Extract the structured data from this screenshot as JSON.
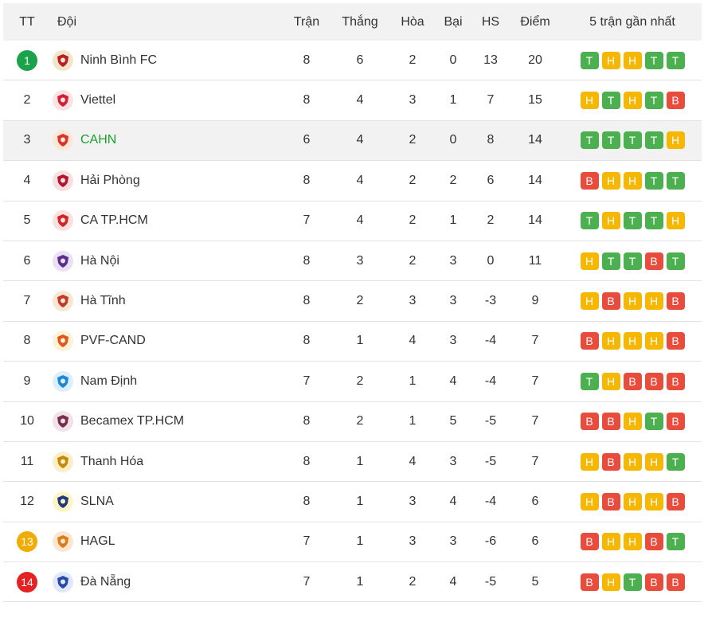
{
  "header": {
    "rank": "TT",
    "team": "Đội",
    "played": "Trận",
    "won": "Thắng",
    "draw": "Hòa",
    "lost": "Bại",
    "gd": "HS",
    "points": "Điểm",
    "form": "5 trận gần nhất"
  },
  "colors": {
    "win": "#4caf50",
    "draw": "#f5b700",
    "loss": "#e74c3c",
    "rank_top": "#1aa34a",
    "rank_playoff": "#f0ad00",
    "rank_relegation": "#e52222",
    "highlight_row": "#f2f2f2",
    "highlight_text": "#1e9e2f"
  },
  "rows": [
    {
      "rank": "1",
      "badge": "top",
      "team": "Ninh Bình FC",
      "logo_icon": "ninh-binh-logo-icon",
      "played": "8",
      "won": "6",
      "draw": "2",
      "lost": "0",
      "gd": "13",
      "points": "20",
      "form": [
        "T",
        "H",
        "H",
        "T",
        "T"
      ]
    },
    {
      "rank": "2",
      "badge": "",
      "team": "Viettel",
      "logo_icon": "viettel-logo-icon",
      "played": "8",
      "won": "4",
      "draw": "3",
      "lost": "1",
      "gd": "7",
      "points": "15",
      "form": [
        "H",
        "T",
        "H",
        "T",
        "B"
      ]
    },
    {
      "rank": "3",
      "badge": "",
      "team": "CAHN",
      "logo_icon": "cahn-logo-icon",
      "highlight": true,
      "played": "6",
      "won": "4",
      "draw": "2",
      "lost": "0",
      "gd": "8",
      "points": "14",
      "form": [
        "T",
        "T",
        "T",
        "T",
        "H"
      ]
    },
    {
      "rank": "4",
      "badge": "",
      "team": "Hải Phòng",
      "logo_icon": "hai-phong-logo-icon",
      "played": "8",
      "won": "4",
      "draw": "2",
      "lost": "2",
      "gd": "6",
      "points": "14",
      "form": [
        "B",
        "H",
        "H",
        "T",
        "T"
      ]
    },
    {
      "rank": "5",
      "badge": "",
      "team": "CA TP.HCM",
      "logo_icon": "ca-tphcm-logo-icon",
      "played": "7",
      "won": "4",
      "draw": "2",
      "lost": "1",
      "gd": "2",
      "points": "14",
      "form": [
        "T",
        "H",
        "T",
        "T",
        "H"
      ]
    },
    {
      "rank": "6",
      "badge": "",
      "team": "Hà Nội",
      "logo_icon": "ha-noi-logo-icon",
      "played": "8",
      "won": "3",
      "draw": "2",
      "lost": "3",
      "gd": "0",
      "points": "11",
      "form": [
        "H",
        "T",
        "T",
        "B",
        "T"
      ]
    },
    {
      "rank": "7",
      "badge": "",
      "team": "Hà Tĩnh",
      "logo_icon": "ha-tinh-logo-icon",
      "played": "8",
      "won": "2",
      "draw": "3",
      "lost": "3",
      "gd": "-3",
      "points": "9",
      "form": [
        "H",
        "B",
        "H",
        "H",
        "B"
      ]
    },
    {
      "rank": "8",
      "badge": "",
      "team": "PVF-CAND",
      "logo_icon": "pvf-cand-logo-icon",
      "played": "8",
      "won": "1",
      "draw": "4",
      "lost": "3",
      "gd": "-4",
      "points": "7",
      "form": [
        "B",
        "H",
        "H",
        "H",
        "B"
      ]
    },
    {
      "rank": "9",
      "badge": "",
      "team": "Nam Định",
      "logo_icon": "nam-dinh-logo-icon",
      "played": "7",
      "won": "2",
      "draw": "1",
      "lost": "4",
      "gd": "-4",
      "points": "7",
      "form": [
        "T",
        "H",
        "B",
        "B",
        "B"
      ]
    },
    {
      "rank": "10",
      "badge": "",
      "team": "Becamex TP.HCM",
      "logo_icon": "becamex-logo-icon",
      "played": "8",
      "won": "2",
      "draw": "1",
      "lost": "5",
      "gd": "-5",
      "points": "7",
      "form": [
        "B",
        "B",
        "H",
        "T",
        "B"
      ]
    },
    {
      "rank": "11",
      "badge": "",
      "team": "Thanh Hóa",
      "logo_icon": "thanh-hoa-logo-icon",
      "played": "8",
      "won": "1",
      "draw": "4",
      "lost": "3",
      "gd": "-5",
      "points": "7",
      "form": [
        "H",
        "B",
        "H",
        "H",
        "T"
      ]
    },
    {
      "rank": "12",
      "badge": "",
      "team": "SLNA",
      "logo_icon": "slna-logo-icon",
      "played": "8",
      "won": "1",
      "draw": "3",
      "lost": "4",
      "gd": "-4",
      "points": "6",
      "form": [
        "H",
        "B",
        "H",
        "H",
        "B"
      ]
    },
    {
      "rank": "13",
      "badge": "playoff",
      "team": "HAGL",
      "logo_icon": "hagl-logo-icon",
      "played": "7",
      "won": "1",
      "draw": "3",
      "lost": "3",
      "gd": "-6",
      "points": "6",
      "form": [
        "B",
        "H",
        "H",
        "B",
        "T"
      ]
    },
    {
      "rank": "14",
      "badge": "relegation",
      "team": "Đà Nẵng",
      "logo_icon": "da-nang-logo-icon",
      "played": "7",
      "won": "1",
      "draw": "2",
      "lost": "4",
      "gd": "-5",
      "points": "5",
      "form": [
        "B",
        "H",
        "T",
        "B",
        "B"
      ]
    }
  ]
}
